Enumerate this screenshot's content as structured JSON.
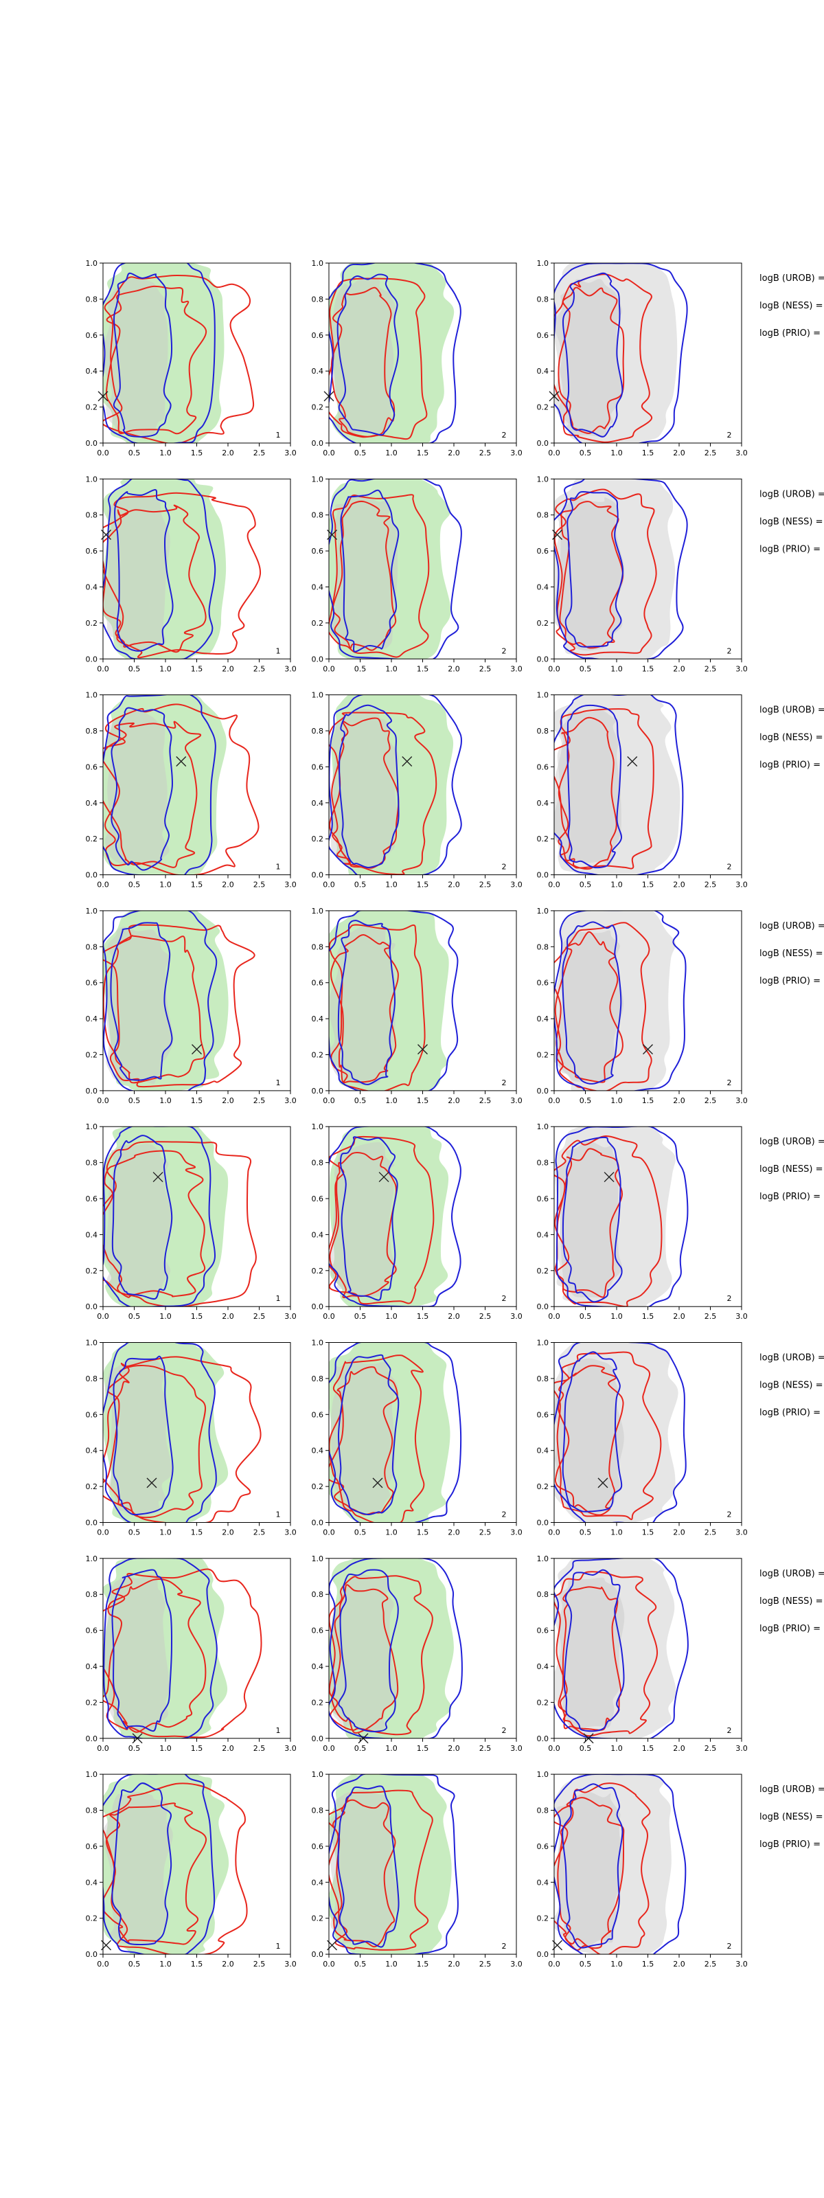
{
  "figure": {
    "n_rows": 8,
    "n_cols": 3,
    "panel_numbers": [
      "1",
      "2",
      "2"
    ],
    "logb_labels": [
      "logB (UROB) =",
      "logB (NESS) =",
      "logB (PRIO) ="
    ],
    "colors": {
      "prior_region_col1": "#c8ecc0",
      "prior_region_col2": "#c8ecc0",
      "prior_region_col3": "#e6e6e6",
      "posterior_fill": "#c8c8c8",
      "red_contour": "#e8251c",
      "blue_contour": "#1f1fd8",
      "marker": "#222222"
    }
  },
  "chart_data": {
    "type": "contour",
    "description_units": "x in [0,3], y in [0,1]",
    "xlim": [
      0,
      3.0
    ],
    "ylim": [
      0,
      1.0
    ],
    "xticks": [
      "0.0",
      "0.5",
      "1.0",
      "1.5",
      "2.0",
      "2.5",
      "3.0"
    ],
    "yticks": [
      "0.0",
      "0.2",
      "0.4",
      "0.6",
      "0.8",
      "1.0"
    ],
    "true_values": [
      {
        "x": 0.0,
        "y": 0.26
      },
      {
        "x": 0.05,
        "y": 0.69
      },
      {
        "x": 1.25,
        "y": 0.63
      },
      {
        "x": 1.5,
        "y": 0.23
      },
      {
        "x": 0.88,
        "y": 0.72
      },
      {
        "x": 0.78,
        "y": 0.22
      },
      {
        "x": 0.55,
        "y": 0.0
      },
      {
        "x": 0.05,
        "y": 0.05
      }
    ]
  }
}
